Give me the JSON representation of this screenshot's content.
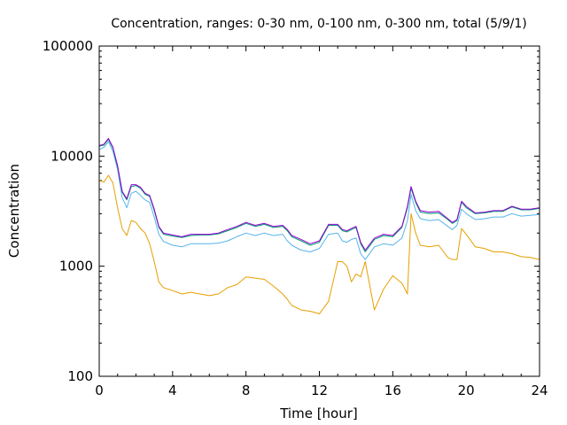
{
  "chart_data": {
    "type": "line",
    "title": "Concentration, ranges: 0-30 nm, 0-100 nm, 0-300 nm, total (5/9/1)",
    "xlabel": "Time [hour]",
    "ylabel": "Concentration",
    "xlim": [
      0,
      24
    ],
    "ylim": [
      100,
      100000
    ],
    "yscale": "log",
    "grid": false,
    "legend": "none",
    "x_ticks": [
      "0",
      "4",
      "8",
      "12",
      "16",
      "20",
      "24"
    ],
    "x_tick_values": [
      0,
      4,
      8,
      12,
      16,
      20,
      24
    ],
    "y_ticks": [
      "100",
      "1000",
      "10000",
      "100000"
    ],
    "y_tick_values": [
      100,
      1000,
      10000,
      100000
    ],
    "x": [
      0,
      0.25,
      0.5,
      0.75,
      1,
      1.25,
      1.5,
      1.75,
      2,
      2.25,
      2.5,
      2.75,
      3,
      3.25,
      3.5,
      4,
      4.5,
      5,
      5.5,
      6,
      6.5,
      7,
      7.5,
      8,
      8.5,
      9,
      9.5,
      10,
      10.25,
      10.5,
      11,
      11.5,
      12,
      12.5,
      13,
      13.25,
      13.5,
      13.75,
      14,
      14.25,
      14.5,
      15,
      15.5,
      16,
      16.5,
      16.8,
      17,
      17.25,
      17.5,
      18,
      18.5,
      19,
      19.25,
      19.5,
      19.75,
      20,
      20.5,
      21,
      21.5,
      22,
      22.5,
      23,
      23.5,
      24
    ],
    "series": [
      {
        "name": "total",
        "color": "#9400d3",
        "values": [
          12500,
          12800,
          14500,
          12000,
          8200,
          4800,
          4100,
          5500,
          5500,
          5200,
          4600,
          4400,
          3300,
          2300,
          2000,
          1920,
          1850,
          1950,
          1950,
          1950,
          2000,
          2150,
          2300,
          2500,
          2350,
          2450,
          2300,
          2350,
          2150,
          1900,
          1750,
          1600,
          1700,
          2400,
          2400,
          2150,
          2100,
          2200,
          2300,
          1650,
          1400,
          1800,
          1950,
          1900,
          2300,
          3500,
          5300,
          3900,
          3200,
          3100,
          3150,
          2700,
          2500,
          2650,
          3900,
          3500,
          3050,
          3100,
          3200,
          3200,
          3500,
          3300,
          3300,
          3400
        ]
      },
      {
        "name": "0-300 nm",
        "color": "#009e73",
        "values": [
          12300,
          12600,
          14200,
          11800,
          8000,
          4700,
          4000,
          5300,
          5400,
          5100,
          4500,
          4300,
          3200,
          2250,
          1950,
          1880,
          1820,
          1900,
          1920,
          1920,
          1970,
          2100,
          2250,
          2450,
          2300,
          2400,
          2250,
          2300,
          2100,
          1850,
          1700,
          1550,
          1650,
          2350,
          2350,
          2100,
          2050,
          2150,
          2250,
          1600,
          1350,
          1750,
          1900,
          1850,
          2250,
          3400,
          5100,
          3800,
          3100,
          3000,
          3050,
          2650,
          2450,
          2600,
          3800,
          3400,
          3000,
          3050,
          3150,
          3150,
          3450,
          3250,
          3250,
          3350
        ]
      },
      {
        "name": "0-100 nm",
        "color": "#56b4e9",
        "values": [
          11500,
          12000,
          13500,
          11000,
          7600,
          4200,
          3400,
          4600,
          4800,
          4400,
          4000,
          3800,
          2800,
          1950,
          1680,
          1550,
          1500,
          1600,
          1600,
          1600,
          1620,
          1700,
          1850,
          2000,
          1900,
          2000,
          1900,
          1950,
          1700,
          1550,
          1400,
          1350,
          1450,
          1950,
          2000,
          1700,
          1650,
          1750,
          1800,
          1300,
          1150,
          1500,
          1600,
          1550,
          1800,
          2600,
          4500,
          3200,
          2700,
          2600,
          2650,
          2300,
          2150,
          2350,
          3300,
          3000,
          2650,
          2700,
          2800,
          2800,
          3000,
          2850,
          2900,
          2950
        ]
      },
      {
        "name": "0-30 nm",
        "color": "#e69f00",
        "values": [
          6000,
          5800,
          6700,
          5700,
          3400,
          2200,
          1900,
          2600,
          2500,
          2200,
          2000,
          1600,
          1100,
          720,
          640,
          600,
          560,
          580,
          560,
          540,
          560,
          640,
          680,
          800,
          780,
          760,
          660,
          560,
          500,
          440,
          400,
          390,
          370,
          480,
          1100,
          1100,
          1000,
          720,
          850,
          800,
          1100,
          400,
          620,
          820,
          700,
          560,
          3000,
          2000,
          1550,
          1500,
          1550,
          1200,
          1150,
          1150,
          2200,
          1950,
          1500,
          1450,
          1350,
          1350,
          1300,
          1220,
          1200,
          1150
        ]
      }
    ]
  }
}
